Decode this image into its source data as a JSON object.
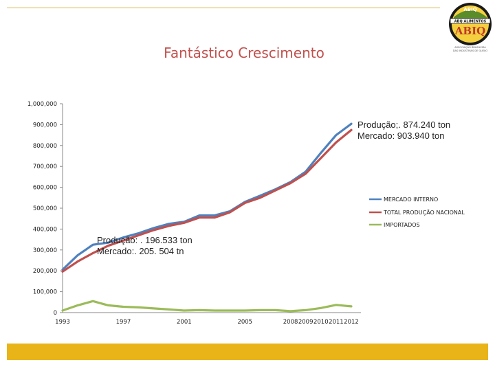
{
  "header": {
    "title": "Fantástico Crescimento",
    "logo": {
      "top_text": "ABIQ",
      "band_text": "ABQ ALIMENTOS",
      "main_text": "ABIQ",
      "sub_text_1": "ASSOCIAÇÃO BRASILEIRA",
      "sub_text_2": "DAS INDÚSTRIAS DE QUEIJO"
    }
  },
  "colors": {
    "title": "#c0504d",
    "footer": "#e8b417",
    "mercado": "#4f81bd",
    "producao": "#c0504d",
    "importados": "#9bbb59"
  },
  "chart_data": {
    "type": "line",
    "title": "Fantástico Crescimento",
    "xlabel": "",
    "ylabel": "",
    "ylim": [
      0,
      1000000
    ],
    "yticks": [
      "0",
      "100,000",
      "200,000",
      "300,000",
      "400,000",
      "500,000",
      "600,000",
      "700,000",
      "800,000",
      "900,000",
      "1,000,000"
    ],
    "x": [
      1993,
      1994,
      1995,
      1996,
      1997,
      1998,
      1999,
      2000,
      2001,
      2002,
      2003,
      2004,
      2005,
      2006,
      2007,
      2008,
      2009,
      2010,
      2011,
      2012
    ],
    "xtick_labels": [
      {
        "x": 1993,
        "label": "1993"
      },
      {
        "x": 1997,
        "label": "1997"
      },
      {
        "x": 2001,
        "label": "2001"
      },
      {
        "x": 2005,
        "label": "2005"
      },
      {
        "x": 2008,
        "label": "2008"
      },
      {
        "x": 2009,
        "label": "2009"
      },
      {
        "x": 2010,
        "label": "2010"
      },
      {
        "x": 2011,
        "label": "2011"
      },
      {
        "x": 2012,
        "label": "2012"
      }
    ],
    "grid": false,
    "legend_position": "right",
    "series": [
      {
        "name": "MERCADO INTERNO",
        "color": "#4f81bd",
        "values": [
          205504,
          275000,
          325000,
          335000,
          360000,
          380000,
          405000,
          425000,
          435000,
          465000,
          465000,
          485000,
          530000,
          560000,
          590000,
          625000,
          675000,
          765000,
          850000,
          903940
        ]
      },
      {
        "name": "TOTAL PRODUÇÃO NACIONAL",
        "color": "#c0504d",
        "values": [
          196533,
          245000,
          285000,
          320000,
          345000,
          370000,
          395000,
          415000,
          430000,
          455000,
          455000,
          480000,
          525000,
          550000,
          585000,
          620000,
          665000,
          740000,
          815000,
          874240
        ]
      },
      {
        "name": "IMPORTADOS",
        "color": "#9bbb59",
        "values": [
          10000,
          35000,
          55000,
          35000,
          28000,
          25000,
          20000,
          15000,
          10000,
          12000,
          10000,
          10000,
          10000,
          12000,
          12000,
          7000,
          12000,
          22000,
          37000,
          30000
        ]
      }
    ],
    "annotations": [
      {
        "lines": [
          "Produção;. 874.240 ton",
          "Mercado: 903.940 ton"
        ]
      },
      {
        "lines": [
          "Produção: . 196.533 ton",
          "Mercado:. 205. 504 tn"
        ]
      }
    ]
  }
}
